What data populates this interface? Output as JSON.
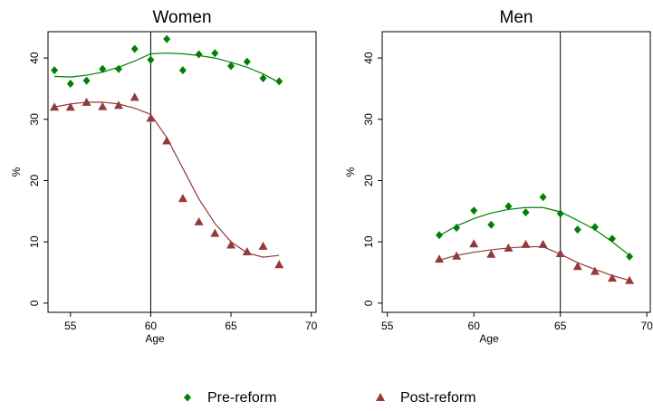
{
  "chart_data": [
    {
      "type": "scatter",
      "title": "Women",
      "xlabel": "Age",
      "ylabel": "%",
      "xlim": [
        53.6,
        70.3
      ],
      "ylim": [
        -1.5,
        44.3
      ],
      "xticks": [
        55,
        60,
        65,
        70
      ],
      "yticks": [
        0,
        10,
        20,
        30,
        40
      ],
      "cutoff": 60,
      "x": [
        54,
        55,
        56,
        57,
        58,
        59,
        60,
        61,
        62,
        63,
        64,
        65,
        66,
        67,
        68
      ],
      "series": [
        {
          "name": "Pre-reform",
          "color": "#008000",
          "marker": "diamond",
          "values": [
            38,
            35.8,
            36.3,
            38.2,
            38.2,
            41.5,
            39.7,
            43.1,
            38,
            40.6,
            40.8,
            38.7,
            39.4,
            36.7,
            36.2
          ],
          "fit": {
            "x": [
              54,
              55,
              56,
              57,
              58,
              59,
              60,
              61,
              62,
              63,
              64,
              65,
              66,
              67,
              68
            ],
            "values": [
              37,
              36.9,
              37.2,
              37.7,
              38.5,
              39.5,
              40.7,
              40.8,
              40.7,
              40.4,
              40,
              39.3,
              38.5,
              37.4,
              36
            ]
          }
        },
        {
          "name": "Post-reform",
          "color": "#943a3a",
          "marker": "triangle",
          "values": [
            32,
            32,
            32.8,
            32.1,
            32.3,
            33.6,
            30.2,
            26.5,
            17.1,
            13.3,
            11.4,
            9.5,
            8.4,
            9.3,
            6.3
          ],
          "fit": {
            "x": [
              54,
              55,
              56,
              57,
              58,
              59,
              60,
              61,
              62,
              63,
              64,
              65,
              66,
              67,
              68
            ],
            "values": [
              32,
              32.5,
              32.8,
              32.8,
              32.5,
              31.8,
              30.8,
              27,
              22,
              17,
              13,
              10,
              8.2,
              7.5,
              7.8
            ]
          }
        }
      ]
    },
    {
      "type": "scatter",
      "title": "Men",
      "xlabel": "Age",
      "ylabel": "%",
      "xlim": [
        54.7,
        70.2
      ],
      "ylim": [
        -1.5,
        44.3
      ],
      "xticks": [
        55,
        60,
        65,
        70
      ],
      "yticks": [
        0,
        10,
        20,
        30,
        40
      ],
      "cutoff": 65,
      "x": [
        58,
        59,
        60,
        61,
        62,
        63,
        64,
        65,
        66,
        67,
        68,
        69
      ],
      "series": [
        {
          "color": "#008000",
          "marker": "diamond",
          "values": [
            11.1,
            12.3,
            15.1,
            12.8,
            15.8,
            14.8,
            17.3,
            14.6,
            12,
            12.4,
            10.5,
            7.6
          ],
          "fit": {
            "x": [
              58,
              59,
              60,
              61,
              62,
              63,
              64,
              65,
              66,
              67,
              68,
              69
            ],
            "values": [
              11,
              12.6,
              13.8,
              14.7,
              15.3,
              15.6,
              15.6,
              14.9,
              13.5,
              12,
              10,
              7.8
            ]
          }
        },
        {
          "color": "#943a3a",
          "marker": "triangle",
          "values": [
            7.2,
            7.7,
            9.7,
            8,
            9,
            9.6,
            9.6,
            8.1,
            6,
            5.2,
            4.1,
            3.7
          ],
          "fit": {
            "x": [
              58,
              59,
              60,
              61,
              62,
              63,
              64,
              65,
              66,
              67,
              68,
              69
            ],
            "values": [
              7,
              7.8,
              8.3,
              8.7,
              9,
              9.2,
              9.2,
              8,
              6.6,
              5.5,
              4.5,
              3.7
            ]
          }
        }
      ]
    }
  ]
}
